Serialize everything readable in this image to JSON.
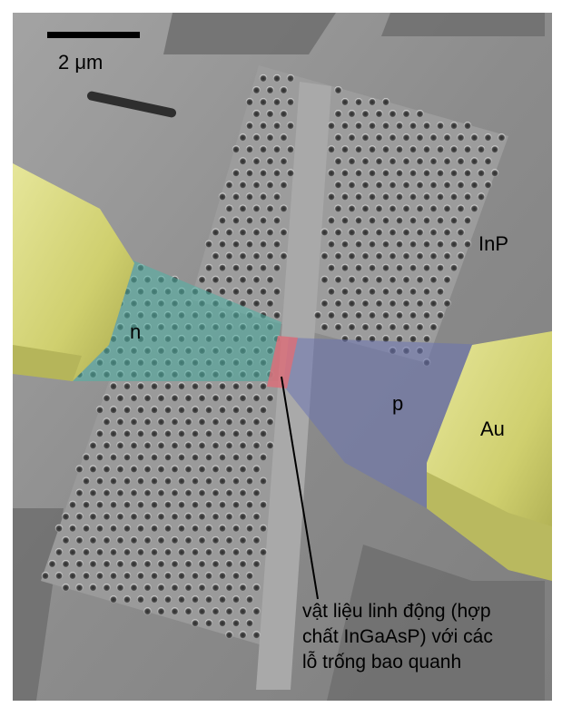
{
  "scale_bar": {
    "label": "2 μm"
  },
  "labels": {
    "substrate": "InP",
    "n_region": "n",
    "p_region": "p",
    "contact": "Au"
  },
  "caption": {
    "lines": [
      "vật liệu linh động (hợp",
      "chất InGaAsP) với các",
      "lỗ trống bao quanh"
    ]
  },
  "colors": {
    "substrate_gray": "#8f8f8f",
    "gold_contact": "#d7d77a",
    "n_region": "#5fb0a8",
    "p_region": "#7d86ad",
    "active_region": "#c96a72"
  }
}
